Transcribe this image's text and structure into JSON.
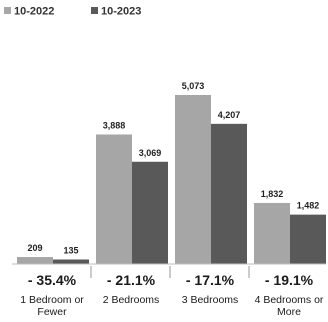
{
  "chart_data": {
    "type": "bar",
    "categories": [
      "1 Bedroom or Fewer",
      "2 Bedrooms",
      "3 Bedrooms",
      "4 Bedrooms or More"
    ],
    "category_label_lines": [
      [
        "1 Bedroom or",
        "Fewer"
      ],
      [
        "2 Bedrooms"
      ],
      [
        "3 Bedrooms"
      ],
      [
        "4 Bedrooms or",
        "More"
      ]
    ],
    "series": [
      {
        "name": "10-2022",
        "values": [
          209,
          3888,
          5073,
          1832
        ],
        "value_labels": [
          "209",
          "3,888",
          "5,073",
          "1,832"
        ],
        "color": "#a6a6a6"
      },
      {
        "name": "10-2023",
        "values": [
          135,
          3069,
          4207,
          1482
        ],
        "value_labels": [
          "135",
          "3,069",
          "4,207",
          "1,482"
        ],
        "color": "#595959"
      }
    ],
    "percent_changes": [
      "- 35.4%",
      "- 21.1%",
      "- 17.1%",
      "- 19.1%"
    ],
    "ylim": [
      0,
      5073
    ],
    "legend_position": "top-left",
    "grid": false
  }
}
